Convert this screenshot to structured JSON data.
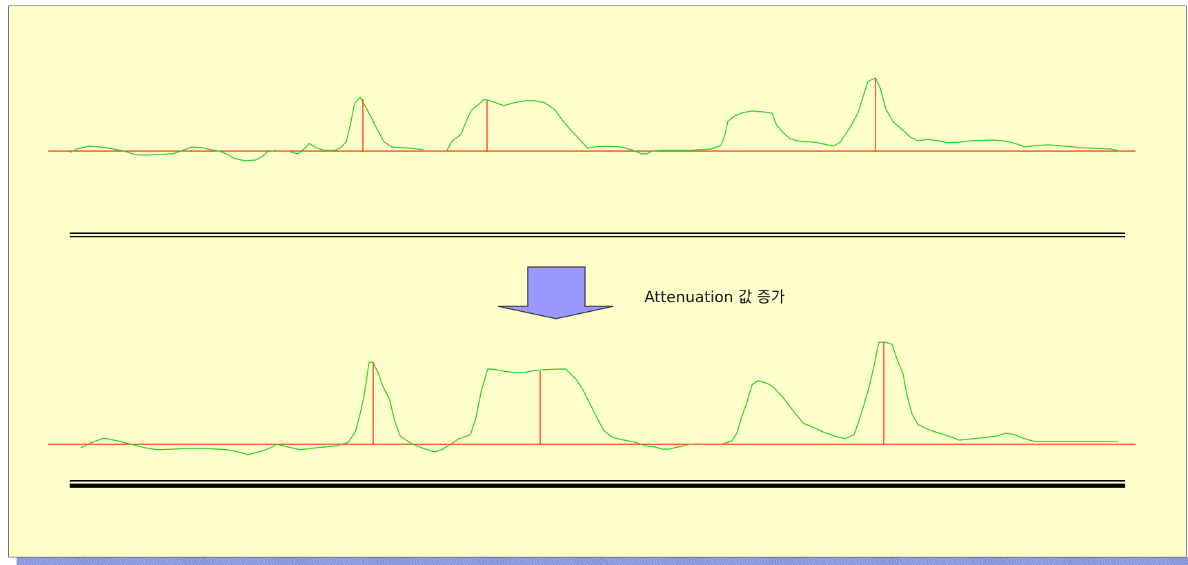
{
  "annotation": {
    "text": "Attenuation 값 증가"
  },
  "colors": {
    "background": "#ffffcc",
    "signal": "#22cc22",
    "baseline": "#ff3300",
    "peak_marker": "#ff3300",
    "arrow_fill": "#9999ff",
    "arrow_stroke": "#333333",
    "separator": "#000000",
    "footer_band": "#7f8cd9"
  },
  "icons": {
    "arrow": "down-arrow-icon"
  }
}
